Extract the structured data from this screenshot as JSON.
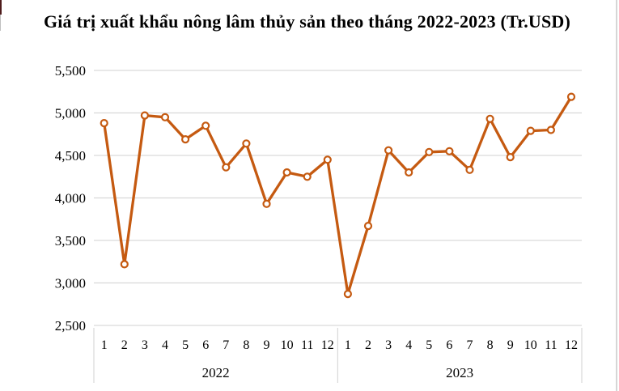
{
  "page": {
    "title": "Giá trị xuất khẩu nông lâm thủy sản theo tháng 2022-2023 (Tr.USD)"
  },
  "chart_data": {
    "type": "line",
    "title": "Giá trị xuất khẩu nông lâm thủy sản theo tháng 2022-2023 (Tr.USD)",
    "unit": "Tr.USD",
    "categories": [
      "1",
      "2",
      "3",
      "4",
      "5",
      "6",
      "7",
      "8",
      "9",
      "10",
      "11",
      "12",
      "1",
      "2",
      "3",
      "4",
      "5",
      "6",
      "7",
      "8",
      "9",
      "10",
      "11",
      "12"
    ],
    "year_groups": [
      {
        "label": "2022",
        "months": 12
      },
      {
        "label": "2023",
        "months": 12
      }
    ],
    "series": [
      {
        "name": "Giá trị xuất khẩu nông lâm thủy sản",
        "values": [
          4880,
          3220,
          4970,
          4950,
          4690,
          4850,
          4360,
          4640,
          3930,
          4300,
          4250,
          4450,
          2870,
          3670,
          4560,
          4300,
          4540,
          4550,
          4330,
          4930,
          4480,
          4790,
          4800,
          5190
        ]
      }
    ],
    "ylim": [
      2500,
      5500
    ],
    "y_tick_step": 500,
    "y_tick_labels": [
      "2,500",
      "3,000",
      "3,500",
      "4,000",
      "4,500",
      "5,000",
      "5,500"
    ],
    "grid": "horizontal",
    "legend_position": "none",
    "line_color": "#C55A11",
    "marker": "open-circle",
    "marker_fill": "#ffffff",
    "gridline_color": "#d9d9d9",
    "axis_divider_color": "#d9d9d9",
    "text_color": "#000000"
  }
}
